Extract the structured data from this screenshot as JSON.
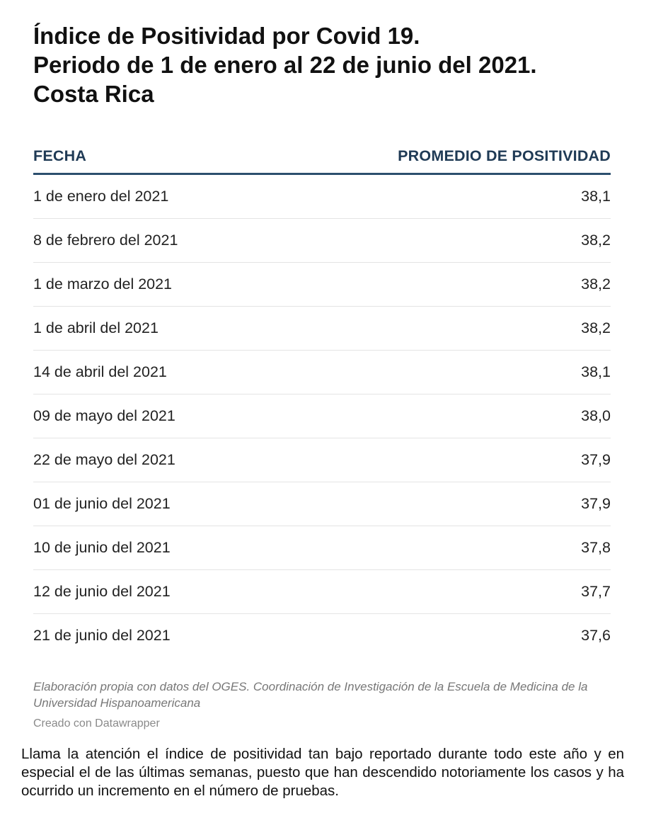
{
  "title_lines": [
    "Índice de Positividad por Covid 19.",
    "Periodo de 1 de enero al 22 de junio del 2021.",
    "Costa Rica"
  ],
  "chart_data": {
    "type": "table",
    "columns": [
      "FECHA",
      "PROMEDIO DE POSITIVIDAD"
    ],
    "rows": [
      {
        "fecha": "1 de enero del 2021",
        "promedio": "38,1"
      },
      {
        "fecha": "8 de febrero del 2021",
        "promedio": "38,2"
      },
      {
        "fecha": "1 de marzo  del 2021",
        "promedio": "38,2"
      },
      {
        "fecha": "1 de abril del 2021",
        "promedio": "38,2"
      },
      {
        "fecha": "14 de abril del 2021",
        "promedio": "38,1"
      },
      {
        "fecha": "09 de mayo del 2021",
        "promedio": "38,0"
      },
      {
        "fecha": "22 de mayo del 2021",
        "promedio": "37,9"
      },
      {
        "fecha": "01 de junio del 2021",
        "promedio": "37,9"
      },
      {
        "fecha": "10 de junio del 2021",
        "promedio": "37,8"
      },
      {
        "fecha": "12 de junio del 2021",
        "promedio": "37,7"
      },
      {
        "fecha": "21 de junio del 2021",
        "promedio": "37,6"
      }
    ]
  },
  "source": " Elaboración propia con datos del OGES. Coordinación de Investigación de la Escuela de Medicina de la Universidad Hispanoamericana",
  "credit": "Creado con Datawrapper",
  "note": "Llama la atención el índice de positividad  tan bajo reportado durante todo este año y en especial el de las últimas semanas, puesto que han descendido notoriamente los casos y ha ocurrido un incremento en el número de pruebas.",
  "colors": {
    "header_text": "#1f3a55",
    "header_rule": "#2c4f6e",
    "row_divider": "#e4e4e4"
  }
}
